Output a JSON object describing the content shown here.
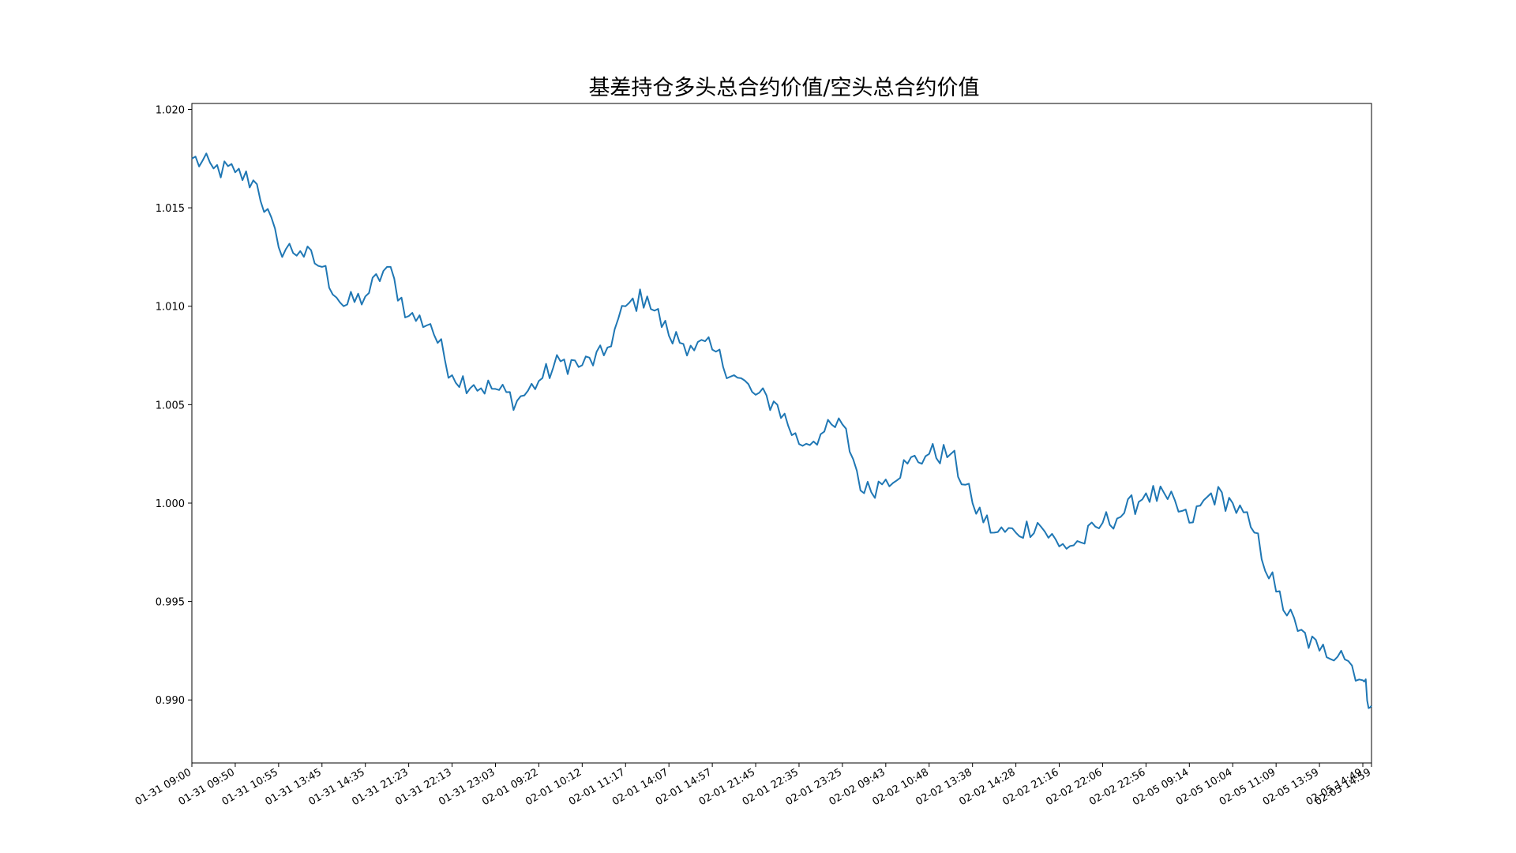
{
  "chart_data": {
    "type": "line",
    "title": "基差持仓多头总合约价值/空头总合约价值",
    "xlabel": "",
    "ylabel": "",
    "ylim": [
      0.9868,
      1.0203
    ],
    "grid": false,
    "legend": "none",
    "y_ticks": [
      "0.990",
      "0.995",
      "1.000",
      "1.005",
      "1.010",
      "1.015",
      "1.020"
    ],
    "x_ticks": [
      "01-31 09:00",
      "01-31 09:50",
      "01-31 10:55",
      "01-31 13:45",
      "01-31 14:35",
      "01-31 21:23",
      "01-31 22:13",
      "01-31 23:03",
      "02-01 09:22",
      "02-01 10:12",
      "02-01 11:17",
      "02-01 14:07",
      "02-01 14:57",
      "02-01 21:45",
      "02-01 22:35",
      "02-01 23:25",
      "02-02 09:43",
      "02-02 10:48",
      "02-02 13:38",
      "02-02 14:28",
      "02-02 21:16",
      "02-02 22:06",
      "02-02 22:56",
      "02-05 09:14",
      "02-05 10:04",
      "02-05 11:09",
      "02-05 13:59",
      "02-05 14:49",
      "02-05 14:59"
    ],
    "series": [
      {
        "color": "#1f77b4",
        "x": [
          0,
          0.5,
          1,
          1.5,
          2,
          2.5,
          3,
          3.5,
          4,
          4.5,
          5,
          5.5,
          6,
          6.5,
          7,
          7.5,
          8,
          8.5,
          9,
          9.5,
          10,
          10.5,
          11,
          11.5,
          12,
          12.5,
          13,
          13.5,
          14,
          14.5,
          15,
          15.5,
          16,
          16.5,
          17,
          17.5,
          18,
          18.5,
          19,
          19.5,
          20,
          20.5,
          21,
          21.5,
          22,
          22.5,
          23,
          23.5,
          24,
          24.5,
          25,
          25.5,
          26,
          26.5,
          27,
          27.2
        ],
        "values": [
          1.0175,
          1.017,
          1.0168,
          1.0162,
          1.013,
          1.0128,
          1.012,
          1.01,
          1.0105,
          1.012,
          1.0095,
          1.0091,
          1.0065,
          1.006,
          1.0058,
          1.0052,
          1.0062,
          1.0072,
          1.007,
          1.0075,
          1.01,
          1.0105,
          1.0085,
          1.008,
          1.0078,
          1.0065,
          1.0055,
          1.005,
          1.003,
          1.0035,
          1.004,
          1.0005,
          1.0012,
          1.002,
          1.0025,
          1.0025,
          1.0,
          0.9985,
          0.9985,
          0.999,
          0.9978,
          0.998,
          0.999,
          0.9995,
          1.0005,
          1.0002,
          0.999,
          1.0005,
          1.0,
          0.9985,
          0.9955,
          0.9935,
          0.9925,
          0.9925,
          0.991,
          0.9897
        ]
      }
    ]
  }
}
